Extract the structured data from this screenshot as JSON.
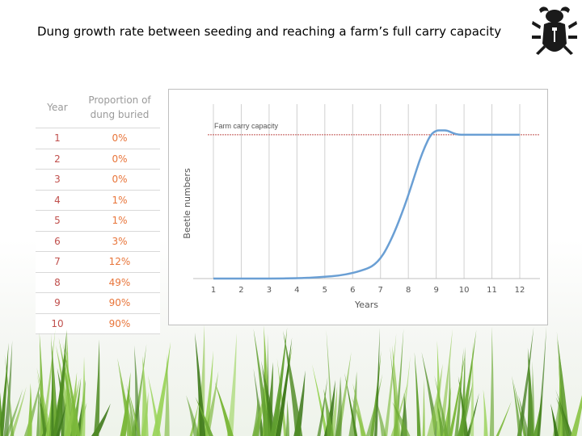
{
  "title": "Dung growth rate between seeding and reaching a farm’s full carry capacity",
  "logo": {
    "icon": "scarab-beetle-icon"
  },
  "table": {
    "headers": [
      "Year",
      "Proportion of dung buried"
    ],
    "rows": [
      {
        "year": "1",
        "proportion": "0%"
      },
      {
        "year": "2",
        "proportion": "0%"
      },
      {
        "year": "3",
        "proportion": "0%"
      },
      {
        "year": "4",
        "proportion": "1%"
      },
      {
        "year": "5",
        "proportion": "1%"
      },
      {
        "year": "6",
        "proportion": "3%"
      },
      {
        "year": "7",
        "proportion": "12%"
      },
      {
        "year": "8",
        "proportion": "49%"
      },
      {
        "year": "9",
        "proportion": "90%"
      },
      {
        "year": "10",
        "proportion": "90%"
      }
    ]
  },
  "chart_data": {
    "type": "line",
    "title": "",
    "xlabel": "Years",
    "ylabel": "Beetle numbers",
    "x_ticks": [
      1,
      2,
      3,
      4,
      5,
      6,
      7,
      8,
      9,
      10,
      11,
      12
    ],
    "xlim": [
      1,
      12
    ],
    "ylim": [
      0,
      1.1
    ],
    "grid": "vertical",
    "annotation": "Farm carry capacity",
    "carry_capacity": 1.0,
    "series": [
      {
        "color": "#6a9fd4",
        "x": [
          1,
          2,
          3,
          4,
          4.5,
          5,
          5.5,
          6,
          6.3,
          6.6,
          6.8,
          7,
          7.2,
          7.5,
          7.8,
          8,
          8.2,
          8.4,
          8.6,
          8.8,
          9,
          9.2,
          9.4,
          9.6,
          9.8,
          10,
          11,
          12
        ],
        "y": [
          0,
          0,
          0,
          0.002,
          0.006,
          0.012,
          0.02,
          0.038,
          0.055,
          0.075,
          0.1,
          0.14,
          0.2,
          0.32,
          0.47,
          0.58,
          0.7,
          0.82,
          0.92,
          1.0,
          1.03,
          1.03,
          1.03,
          1.01,
          1.0,
          1.0,
          1.0,
          1.0
        ]
      }
    ],
    "colors": {
      "line": "#6a9fd4",
      "capacity": "#c0504d",
      "grid": "#d0d0d0"
    }
  }
}
